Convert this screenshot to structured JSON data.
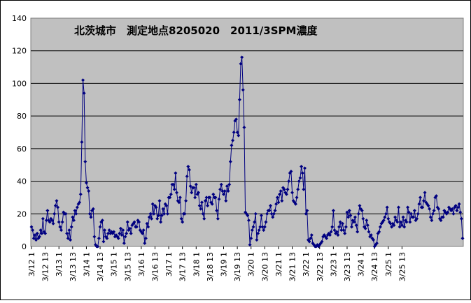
{
  "chart_data": {
    "type": "line",
    "title": "北茨城市　測定地点8205020　2011/3SPM濃度",
    "xlabel": "",
    "ylabel": "",
    "ylim": [
      0,
      140
    ],
    "yticks": [
      "0",
      "20",
      "40",
      "60",
      "80",
      "100",
      "120",
      "140"
    ],
    "xticks": [
      "3/12 1",
      "3/12 13",
      "3/13 1",
      "3/13 13",
      "3/14 1",
      "3/14 13",
      "3/15 1",
      "3/15 13",
      "3/16 1",
      "3/16 13",
      "3/17 1",
      "3/17 13",
      "3/18 1",
      "3/18 13",
      "3/19 1",
      "3/19 13",
      "3/20 1",
      "3/20 13",
      "3/21 1",
      "3/21 13",
      "3/22 1",
      "3/22 13",
      "3/23 1",
      "3/23 13",
      "3/24 1",
      "3/24 13",
      "3/25 1",
      "3/25 13"
    ],
    "grid": true,
    "legend": "none",
    "line_color": "#000080",
    "plot_background": "#c0c0c0",
    "series": [
      {
        "values": [
          12,
          10,
          5,
          7,
          4,
          8,
          5,
          6,
          10,
          8,
          17,
          9,
          8,
          16,
          22,
          16,
          15,
          17,
          16,
          14,
          20,
          25,
          28,
          24,
          15,
          12,
          10,
          15,
          21,
          20,
          20,
          8,
          5,
          10,
          4,
          12,
          18,
          16,
          22,
          20,
          24,
          26,
          27,
          32,
          64,
          102,
          94,
          52,
          39,
          36,
          34,
          20,
          18,
          22,
          23,
          6,
          1,
          0,
          0,
          5,
          12,
          15,
          16,
          3,
          10,
          6,
          5,
          8,
          10,
          8,
          9,
          8,
          9,
          6,
          7,
          6,
          5,
          8,
          11,
          7,
          10,
          2,
          6,
          8,
          15,
          10,
          11,
          8,
          13,
          14,
          15,
          12,
          12,
          16,
          15,
          10,
          9,
          8,
          10,
          2,
          5,
          14,
          12,
          18,
          20,
          17,
          26,
          20,
          25,
          24,
          17,
          19,
          28,
          15,
          19,
          23,
          20,
          26,
          25,
          20,
          30,
          30,
          32,
          38,
          38,
          35,
          45,
          33,
          28,
          27,
          30,
          17,
          15,
          20,
          20,
          28,
          43,
          49,
          47,
          37,
          33,
          36,
          36,
          30,
          38,
          32,
          33,
          25,
          23,
          27,
          20,
          17,
          28,
          30,
          25,
          30,
          30,
          27,
          26,
          32,
          30,
          30,
          22,
          17,
          29,
          35,
          38,
          34,
          32,
          34,
          28,
          37,
          34,
          38,
          52,
          62,
          65,
          70,
          77,
          78,
          70,
          68,
          90,
          112,
          116,
          96,
          73,
          21,
          20,
          19,
          16,
          1,
          5,
          10,
          12,
          15,
          20,
          4,
          8,
          10,
          12,
          19,
          12,
          10,
          12,
          15,
          20,
          22,
          22,
          25,
          20,
          18,
          20,
          22,
          26,
          30,
          27,
          32,
          34,
          28,
          36,
          35,
          33,
          32,
          35,
          40,
          45,
          46,
          33,
          28,
          27,
          26,
          30,
          35,
          40,
          42,
          49,
          45,
          35,
          48,
          20,
          22,
          4,
          3,
          5,
          7,
          2,
          1,
          0,
          0,
          1,
          0,
          1,
          2,
          3,
          6,
          7,
          6,
          5,
          7,
          8,
          7,
          9,
          12,
          22,
          10,
          8,
          9,
          7,
          12,
          15,
          10,
          14,
          10,
          8,
          12,
          21,
          18,
          22,
          19,
          12,
          16,
          15,
          18,
          13,
          9,
          20,
          25,
          23,
          22,
          17,
          12,
          11,
          16,
          13,
          9,
          6,
          7,
          5,
          4,
          0,
          1,
          2,
          8,
          9,
          12,
          14,
          15,
          16,
          18,
          20,
          24,
          17,
          15,
          14,
          12,
          14,
          13,
          18,
          16,
          15,
          24,
          12,
          15,
          13,
          18,
          12,
          16,
          15,
          24,
          21,
          15,
          20,
          18,
          18,
          22,
          16,
          17,
          20,
          26,
          30,
          24,
          24,
          28,
          33,
          27,
          26,
          25,
          23,
          18,
          16,
          20,
          22,
          30,
          31,
          24,
          23,
          17,
          16,
          18,
          18,
          22,
          21,
          20,
          21,
          24,
          23,
          22,
          23,
          20,
          24,
          25,
          22,
          24,
          26,
          21,
          17,
          5
        ],
        "x_start": 0,
        "samples_per_hour": 1
      }
    ]
  }
}
